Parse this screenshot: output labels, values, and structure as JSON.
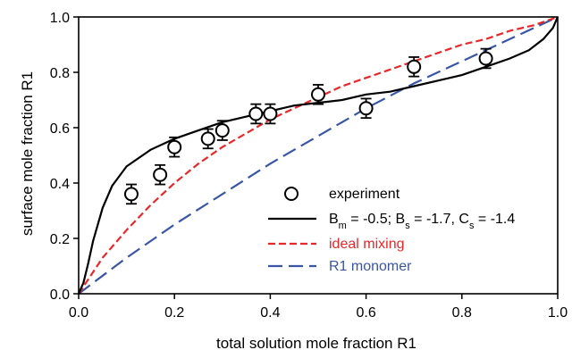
{
  "chart_data": {
    "type": "scatter",
    "xlabel": "total solution mole fraction R1",
    "ylabel": "surface mole fraction R1",
    "xlim": [
      0.0,
      1.0
    ],
    "ylim": [
      0.0,
      1.0
    ],
    "xticks": [
      "0.0",
      "0.2",
      "0.4",
      "0.6",
      "0.8",
      "1.0"
    ],
    "yticks": [
      "0.0",
      "0.2",
      "0.4",
      "0.6",
      "0.8",
      "1.0"
    ],
    "grid": false,
    "legend_position": "bottom-right",
    "experiment": {
      "name": "experiment",
      "color": "#000000",
      "points": [
        {
          "x": 0.11,
          "y": 0.36,
          "err": 0.035
        },
        {
          "x": 0.17,
          "y": 0.43,
          "err": 0.035
        },
        {
          "x": 0.2,
          "y": 0.53,
          "err": 0.035
        },
        {
          "x": 0.27,
          "y": 0.56,
          "err": 0.035
        },
        {
          "x": 0.3,
          "y": 0.59,
          "err": 0.035
        },
        {
          "x": 0.37,
          "y": 0.65,
          "err": 0.035
        },
        {
          "x": 0.4,
          "y": 0.65,
          "err": 0.035
        },
        {
          "x": 0.5,
          "y": 0.72,
          "err": 0.035
        },
        {
          "x": 0.6,
          "y": 0.67,
          "err": 0.035
        },
        {
          "x": 0.7,
          "y": 0.82,
          "err": 0.035
        },
        {
          "x": 0.85,
          "y": 0.85,
          "err": 0.035
        }
      ]
    },
    "model": {
      "name": "B_m = -0.5; B_s = -1.7, C_s = -1.4",
      "color": "#000000",
      "legend_parts": [
        {
          "t": "B",
          "sub": false
        },
        {
          "t": "m",
          "sub": true
        },
        {
          "t": " = -0.5; B",
          "sub": false
        },
        {
          "t": "s",
          "sub": true
        },
        {
          "t": " = -1.7, C",
          "sub": false
        },
        {
          "t": "s",
          "sub": true
        },
        {
          "t": " = -1.4",
          "sub": false
        }
      ],
      "x": [
        0,
        0.01,
        0.02,
        0.03,
        0.05,
        0.07,
        0.1,
        0.15,
        0.2,
        0.25,
        0.3,
        0.35,
        0.4,
        0.45,
        0.5,
        0.55,
        0.6,
        0.65,
        0.7,
        0.75,
        0.8,
        0.85,
        0.9,
        0.94,
        0.97,
        0.99,
        1.0
      ],
      "y": [
        0,
        0.04,
        0.11,
        0.19,
        0.31,
        0.39,
        0.46,
        0.52,
        0.56,
        0.59,
        0.62,
        0.64,
        0.66,
        0.68,
        0.69,
        0.7,
        0.72,
        0.73,
        0.75,
        0.77,
        0.79,
        0.82,
        0.85,
        0.88,
        0.92,
        0.96,
        1.0
      ]
    },
    "ideal_mixing": {
      "name": "ideal mixing",
      "color": "#e8282a",
      "x": [
        0,
        0.05,
        0.1,
        0.15,
        0.2,
        0.25,
        0.3,
        0.35,
        0.4,
        0.45,
        0.5,
        0.55,
        0.6,
        0.65,
        0.7,
        0.75,
        0.8,
        0.85,
        0.9,
        0.95,
        1.0
      ],
      "y": [
        0,
        0.13,
        0.23,
        0.32,
        0.4,
        0.47,
        0.53,
        0.58,
        0.63,
        0.67,
        0.71,
        0.75,
        0.78,
        0.81,
        0.84,
        0.87,
        0.9,
        0.92,
        0.95,
        0.97,
        1.0
      ]
    },
    "r1_monomer": {
      "name": "R1 monomer",
      "color": "#3955a5",
      "x": [
        0,
        0.1,
        0.2,
        0.3,
        0.4,
        0.5,
        0.6,
        0.7,
        0.8,
        0.9,
        1.0
      ],
      "y": [
        0,
        0.13,
        0.25,
        0.36,
        0.47,
        0.57,
        0.67,
        0.76,
        0.84,
        0.92,
        1.0
      ]
    }
  }
}
